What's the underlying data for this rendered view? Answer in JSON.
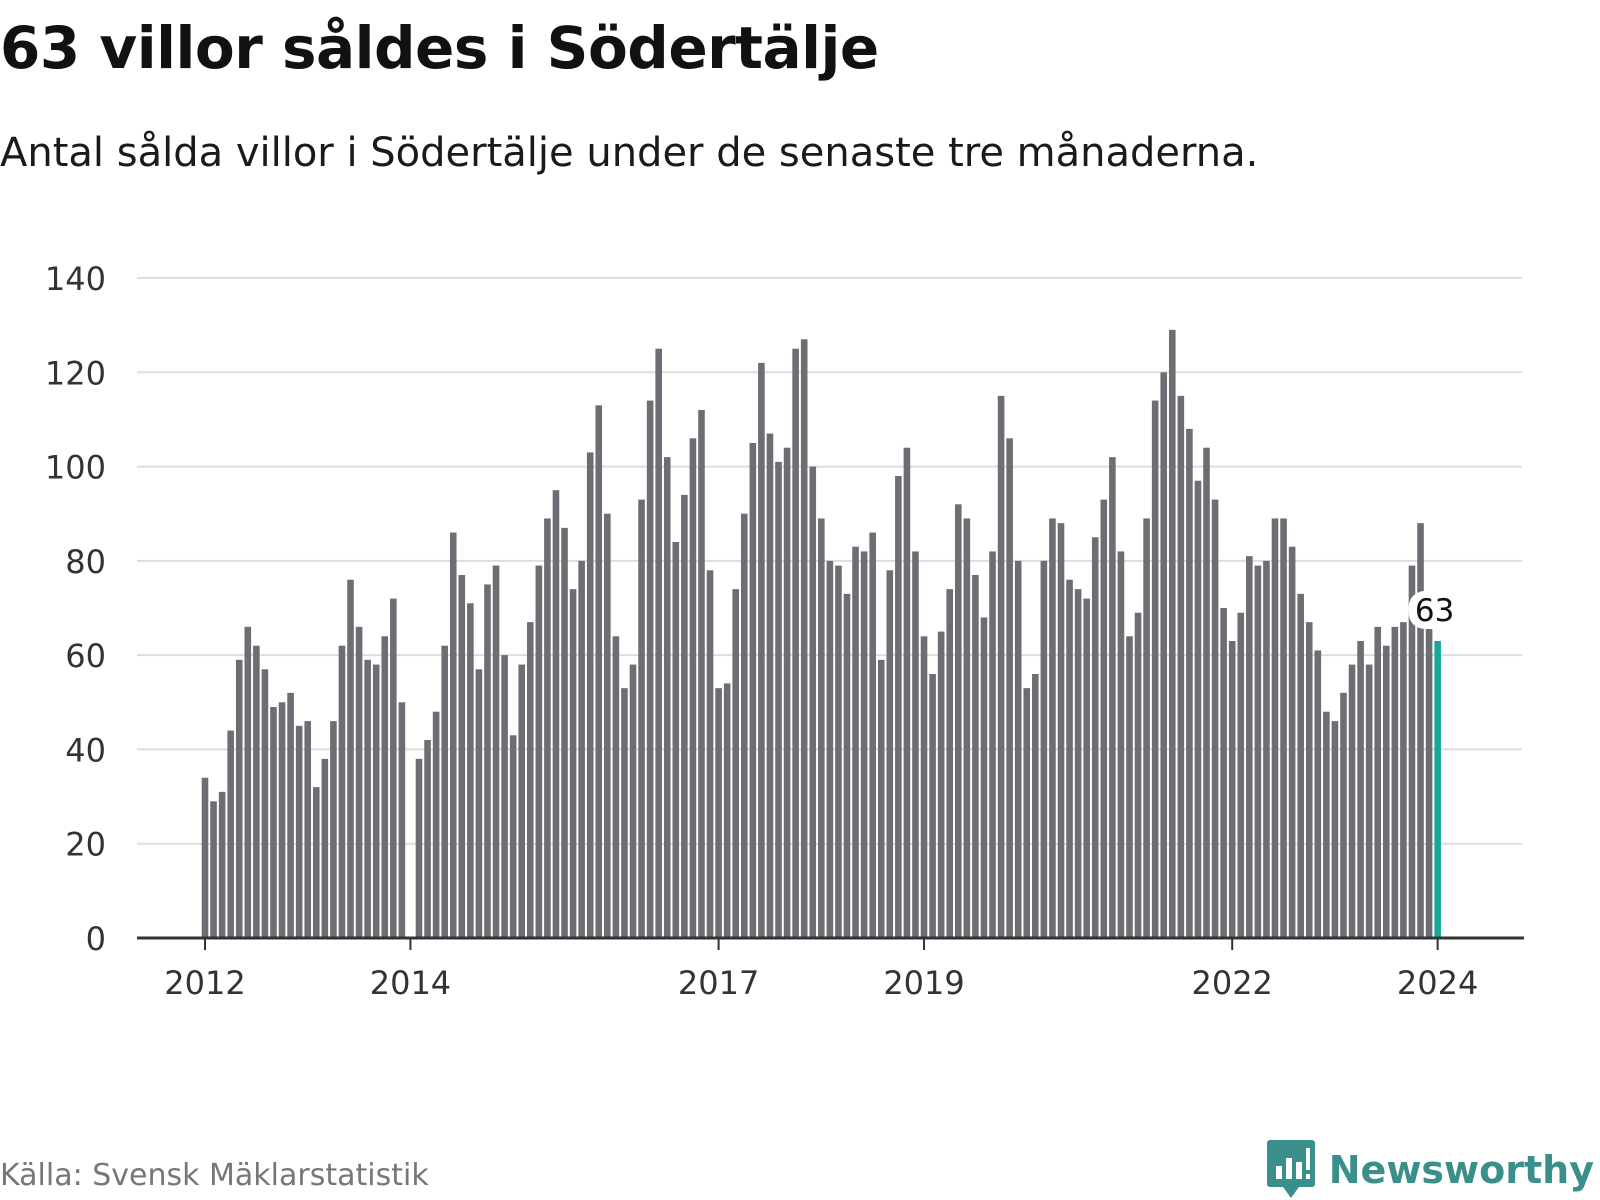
{
  "header": {
    "title": "63 villor såldes i Södertälje",
    "subtitle": "Antal sålda villor i Södertälje under de senaste tre månaderna."
  },
  "footer": {
    "source": "Källa: Svensk Mäklarstatistik",
    "brand": "Newsworthy"
  },
  "colors": {
    "bar": "#6e6d73",
    "highlight": "#1aa89a",
    "grid": "#dddddd",
    "axis": "#333333",
    "brand": "#3a8f8a"
  },
  "chart_data": {
    "type": "bar",
    "title": "63 villor såldes i Södertälje",
    "xlabel": "",
    "ylabel": "",
    "ylim": [
      0,
      140
    ],
    "yticks": [
      0,
      20,
      40,
      60,
      80,
      100,
      120,
      140
    ],
    "grid": true,
    "start": "2012-01",
    "xtick_labels": [
      {
        "label": "2012",
        "index": 0
      },
      {
        "label": "2014",
        "index": 24
      },
      {
        "label": "2017",
        "index": 60
      },
      {
        "label": "2019",
        "index": 84
      },
      {
        "label": "2022",
        "index": 120
      },
      {
        "label": "2024",
        "index": 144
      }
    ],
    "values": [
      34,
      29,
      31,
      44,
      59,
      66,
      62,
      57,
      49,
      50,
      52,
      45,
      46,
      32,
      38,
      46,
      62,
      76,
      66,
      59,
      58,
      64,
      72,
      50,
      null,
      38,
      42,
      48,
      62,
      86,
      77,
      71,
      57,
      75,
      79,
      60,
      43,
      58,
      67,
      79,
      89,
      95,
      87,
      74,
      80,
      103,
      113,
      90,
      64,
      53,
      58,
      93,
      114,
      125,
      102,
      84,
      94,
      106,
      112,
      78,
      53,
      54,
      74,
      90,
      105,
      122,
      107,
      101,
      104,
      125,
      127,
      100,
      89,
      80,
      79,
      73,
      83,
      82,
      86,
      59,
      78,
      98,
      104,
      82,
      64,
      56,
      65,
      74,
      92,
      89,
      77,
      68,
      82,
      115,
      106,
      80,
      53,
      56,
      80,
      89,
      88,
      76,
      74,
      72,
      85,
      93,
      102,
      82,
      64,
      69,
      89,
      114,
      120,
      129,
      115,
      108,
      97,
      104,
      93,
      70,
      63,
      69,
      81,
      79,
      80,
      89,
      89,
      83,
      73,
      67,
      61,
      48,
      46,
      52,
      58,
      63,
      58,
      66,
      62,
      66,
      67,
      79,
      88,
      66,
      63
    ],
    "highlight": {
      "index": 144,
      "value": 63,
      "label": "63"
    }
  }
}
